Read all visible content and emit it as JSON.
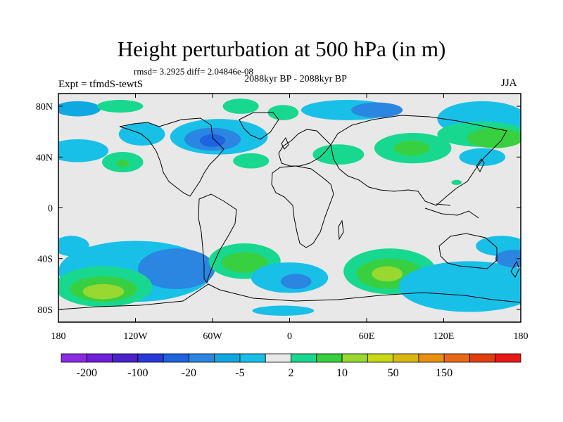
{
  "title": "Height perturbation at 500 hPa (in m)",
  "stats": "rmsd= 3.2925 diff= 2.04846e-08",
  "period": "2088kyr BP - 2088kyr BP",
  "expt_label": "Expt = tfmdS-tewtS",
  "season": "JJA",
  "map": {
    "projection": "cylindrical-equidistant",
    "lon_range": [
      -180,
      180
    ],
    "lat_range": [
      -90,
      90
    ],
    "background_color": "#e8e8e8",
    "coastline_color": "#000000",
    "lat_labels": [
      {
        "lat": 80,
        "text": "80N"
      },
      {
        "lat": 40,
        "text": "40N"
      },
      {
        "lat": 0,
        "text": "0"
      },
      {
        "lat": -40,
        "text": "40S"
      },
      {
        "lat": -80,
        "text": "80S"
      }
    ],
    "lon_labels": [
      {
        "lon": -180,
        "text": "180"
      },
      {
        "lon": -120,
        "text": "120W"
      },
      {
        "lon": -60,
        "text": "60W"
      },
      {
        "lon": 0,
        "text": "0"
      },
      {
        "lon": 60,
        "text": "60E"
      },
      {
        "lon": 120,
        "text": "120E"
      },
      {
        "lon": 180,
        "text": "180"
      }
    ]
  },
  "colorbar": {
    "colors": [
      "#8a2be2",
      "#7020d8",
      "#4b22c8",
      "#2a3ad8",
      "#1e64e0",
      "#2a86e0",
      "#10a8e0",
      "#18c0e8",
      "#e8e8e8",
      "#18d890",
      "#38d040",
      "#98d830",
      "#c8d818",
      "#d8b810",
      "#e89010",
      "#e86818",
      "#e04010",
      "#e81818"
    ],
    "labels": [
      {
        "after_box": 1,
        "text": "-200"
      },
      {
        "after_box": 3,
        "text": "-100"
      },
      {
        "after_box": 5,
        "text": "-20"
      },
      {
        "after_box": 7,
        "text": "-5"
      },
      {
        "after_box": 9,
        "text": "2"
      },
      {
        "after_box": 11,
        "text": "10"
      },
      {
        "after_box": 13,
        "text": "50"
      },
      {
        "after_box": 15,
        "text": "150"
      }
    ]
  },
  "fields": [
    {
      "lon": -165,
      "lat": 78,
      "rx": 18,
      "ry": 6,
      "color": "#10a8e0"
    },
    {
      "lon": -132,
      "lat": 80,
      "rx": 18,
      "ry": 5,
      "color": "#18d890"
    },
    {
      "lon": -38,
      "lat": 80,
      "rx": 14,
      "ry": 6,
      "color": "#18d890"
    },
    {
      "lon": -5,
      "lat": 75,
      "rx": 12,
      "ry": 6,
      "color": "#18d890"
    },
    {
      "lon": -115,
      "lat": 58,
      "rx": 18,
      "ry": 9,
      "color": "#18c0e8"
    },
    {
      "lon": -55,
      "lat": 56,
      "rx": 38,
      "ry": 14,
      "color": "#18c0e8"
    },
    {
      "lon": -60,
      "lat": 54,
      "rx": 22,
      "ry": 9,
      "color": "#2a86e0"
    },
    {
      "lon": -60,
      "lat": 53,
      "rx": 10,
      "ry": 5,
      "color": "#1e64e0"
    },
    {
      "lon": 45,
      "lat": 77,
      "rx": 36,
      "ry": 8,
      "color": "#18c0e8"
    },
    {
      "lon": 68,
      "lat": 77,
      "rx": 20,
      "ry": 6,
      "color": "#2a86e0"
    },
    {
      "lon": 150,
      "lat": 70,
      "rx": 35,
      "ry": 14,
      "color": "#18c0e8"
    },
    {
      "lon": 150,
      "lat": 58,
      "rx": 35,
      "ry": 10,
      "color": "#18d890"
    },
    {
      "lon": 160,
      "lat": 55,
      "rx": 22,
      "ry": 8,
      "color": "#38d040"
    },
    {
      "lon": 150,
      "lat": 40,
      "rx": 18,
      "ry": 7,
      "color": "#18c0e8"
    },
    {
      "lon": 96,
      "lat": 47,
      "rx": 30,
      "ry": 12,
      "color": "#18d890"
    },
    {
      "lon": 95,
      "lat": 47,
      "rx": 14,
      "ry": 6,
      "color": "#38d040"
    },
    {
      "lon": 38,
      "lat": 42,
      "rx": 20,
      "ry": 8,
      "color": "#18d890"
    },
    {
      "lon": -165,
      "lat": 45,
      "rx": 24,
      "ry": 9,
      "color": "#18c0e8"
    },
    {
      "lon": -130,
      "lat": 36,
      "rx": 16,
      "ry": 8,
      "color": "#18d890"
    },
    {
      "lon": -130,
      "lat": 35,
      "rx": 5,
      "ry": 3,
      "color": "#38d040"
    },
    {
      "lon": -30,
      "lat": 37,
      "rx": 14,
      "ry": 6,
      "color": "#18d890"
    },
    {
      "lon": 130,
      "lat": 20,
      "rx": 4,
      "ry": 2,
      "color": "#18d890"
    },
    {
      "lon": -170,
      "lat": -30,
      "rx": 14,
      "ry": 8,
      "color": "#18c0e8"
    },
    {
      "lon": -120,
      "lat": -50,
      "rx": 60,
      "ry": 24,
      "color": "#18c0e8"
    },
    {
      "lon": -88,
      "lat": -48,
      "rx": 30,
      "ry": 16,
      "color": "#2a86e0"
    },
    {
      "lon": -145,
      "lat": -62,
      "rx": 38,
      "ry": 16,
      "color": "#18d890"
    },
    {
      "lon": -145,
      "lat": -64,
      "rx": 26,
      "ry": 10,
      "color": "#38d040"
    },
    {
      "lon": -145,
      "lat": -66,
      "rx": 16,
      "ry": 6,
      "color": "#98d830"
    },
    {
      "lon": -35,
      "lat": -42,
      "rx": 28,
      "ry": 14,
      "color": "#18d890"
    },
    {
      "lon": -35,
      "lat": -43,
      "rx": 18,
      "ry": 8,
      "color": "#38d040"
    },
    {
      "lon": 0,
      "lat": -55,
      "rx": 30,
      "ry": 12,
      "color": "#18c0e8"
    },
    {
      "lon": 5,
      "lat": -58,
      "rx": 12,
      "ry": 6,
      "color": "#2a86e0"
    },
    {
      "lon": 78,
      "lat": -50,
      "rx": 36,
      "ry": 18,
      "color": "#18d890"
    },
    {
      "lon": 78,
      "lat": -52,
      "rx": 26,
      "ry": 12,
      "color": "#38d040"
    },
    {
      "lon": 76,
      "lat": -52,
      "rx": 12,
      "ry": 6,
      "color": "#98d830"
    },
    {
      "lon": 140,
      "lat": -62,
      "rx": 55,
      "ry": 20,
      "color": "#18c0e8"
    },
    {
      "lon": 165,
      "lat": -30,
      "rx": 20,
      "ry": 8,
      "color": "#18c0e8"
    },
    {
      "lon": 175,
      "lat": -40,
      "rx": 15,
      "ry": 7,
      "color": "#2a86e0"
    },
    {
      "lon": -5,
      "lat": -81,
      "rx": 24,
      "ry": 4,
      "color": "#18c0e8"
    }
  ]
}
